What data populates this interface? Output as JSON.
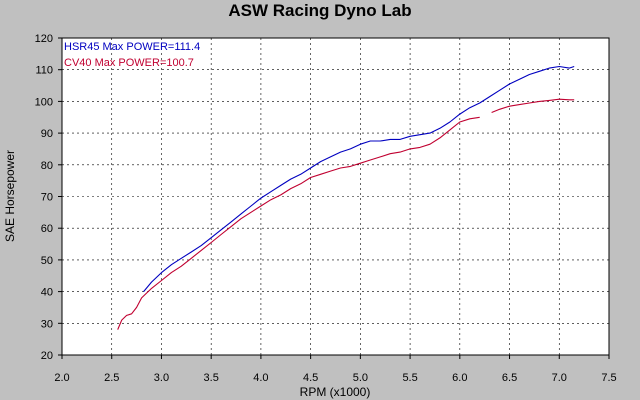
{
  "chart_data": {
    "type": "line",
    "title": "ASW Racing Dyno Lab",
    "xlabel": "RPM (x1000)",
    "ylabel": "SAE Horsepower",
    "xlim": [
      2.0,
      7.5
    ],
    "ylim": [
      20,
      120
    ],
    "xticks": [
      "2.0",
      "2.5",
      "3.0",
      "3.5",
      "4.0",
      "4.5",
      "5.0",
      "5.5",
      "6.0",
      "6.5",
      "7.0",
      "7.5"
    ],
    "yticks": [
      "20",
      "30",
      "40",
      "50",
      "60",
      "70",
      "80",
      "90",
      "100",
      "110",
      "120"
    ],
    "grid": true,
    "legend_position": "top-left",
    "series": [
      {
        "name": "HSR45",
        "legend_label": "HSR45  Max POWER=111.4",
        "color": "#0000c0",
        "x": [
          2.82,
          2.9,
          3.0,
          3.1,
          3.2,
          3.3,
          3.4,
          3.5,
          3.6,
          3.7,
          3.8,
          3.9,
          4.0,
          4.1,
          4.2,
          4.3,
          4.4,
          4.5,
          4.6,
          4.7,
          4.8,
          4.9,
          5.0,
          5.1,
          5.2,
          5.3,
          5.4,
          5.5,
          5.6,
          5.7,
          5.8,
          5.9,
          6.0,
          6.1,
          6.2,
          6.3,
          6.4,
          6.5,
          6.6,
          6.7,
          6.8,
          6.9,
          7.0,
          7.1,
          7.15
        ],
        "y": [
          40,
          43,
          46,
          48.5,
          50.5,
          52.5,
          54.5,
          57,
          59.5,
          62,
          64.5,
          67,
          69.5,
          71.5,
          73.5,
          75.5,
          77,
          79,
          81,
          82.5,
          84,
          85,
          86.5,
          87.5,
          87.5,
          88,
          88,
          89,
          89.5,
          90,
          91.5,
          93.5,
          96,
          98,
          99.5,
          101.5,
          103.5,
          105.5,
          107,
          108.5,
          109.5,
          110.5,
          111,
          110.5,
          111
        ]
      },
      {
        "name": "CV40",
        "legend_label": "CV40  Max POWER=100.7",
        "color": "#c00030",
        "x": [
          2.56,
          2.6,
          2.65,
          2.7,
          2.75,
          2.8,
          2.9,
          3.0,
          3.1,
          3.2,
          3.3,
          3.4,
          3.5,
          3.6,
          3.7,
          3.8,
          3.9,
          4.0,
          4.1,
          4.2,
          4.3,
          4.4,
          4.5,
          4.6,
          4.7,
          4.8,
          4.9,
          5.0,
          5.1,
          5.2,
          5.3,
          5.4,
          5.5,
          5.6,
          5.7,
          5.8,
          5.9,
          6.0,
          6.1,
          6.2,
          null,
          6.32,
          6.4,
          6.5,
          6.6,
          6.7,
          6.8,
          6.9,
          7.0,
          7.1,
          7.15
        ],
        "y": [
          28,
          31,
          32.5,
          33,
          35,
          38,
          41,
          43.5,
          46,
          48,
          50.5,
          53,
          55.5,
          58,
          60.5,
          63,
          65,
          67,
          69,
          70.5,
          72.5,
          74,
          76,
          77,
          78,
          79,
          79.5,
          80.5,
          81.5,
          82.5,
          83.5,
          84,
          85,
          85.5,
          86.5,
          88.5,
          91,
          93.5,
          94.5,
          95,
          null,
          96.5,
          97.5,
          98.5,
          99,
          99.5,
          100,
          100.3,
          100.7,
          100.5,
          100.5
        ]
      }
    ]
  }
}
